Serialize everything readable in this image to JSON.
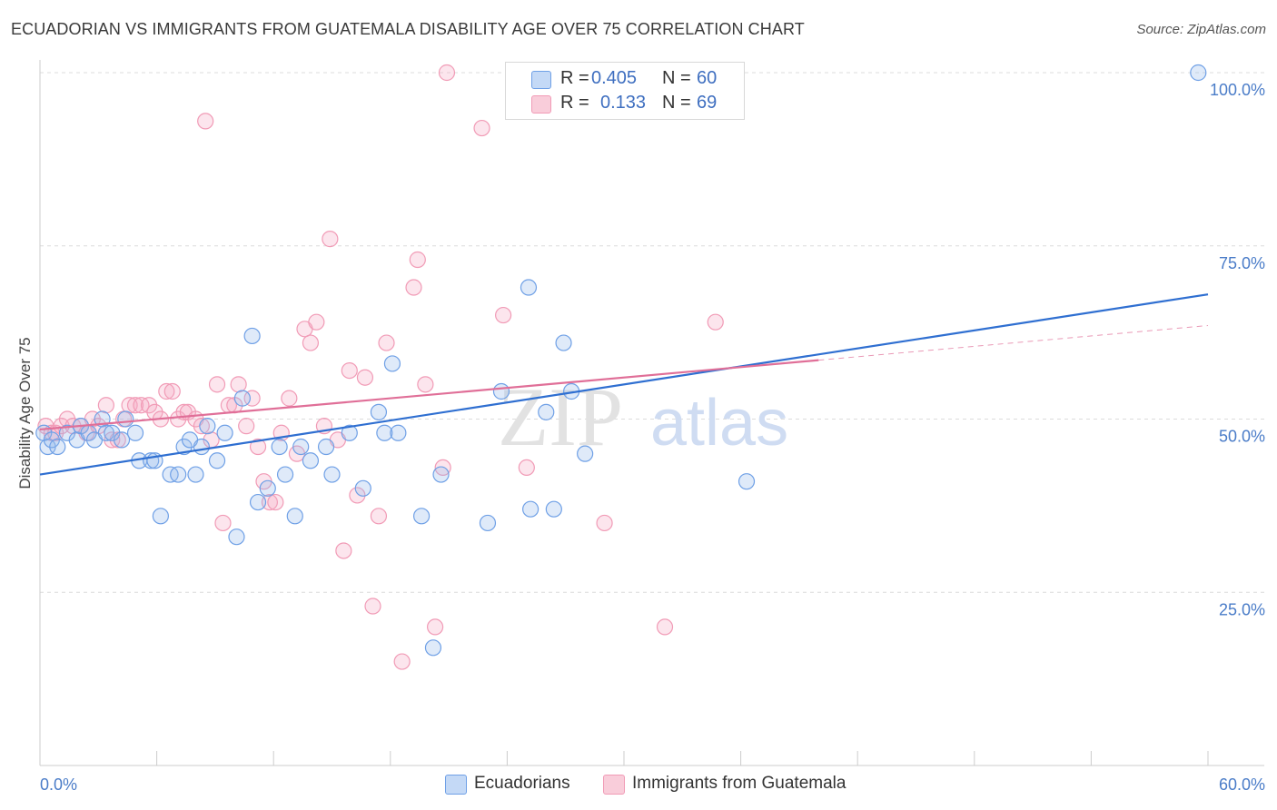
{
  "title": "ECUADORIAN VS IMMIGRANTS FROM GUATEMALA DISABILITY AGE OVER 75 CORRELATION CHART",
  "source": "Source: ZipAtlas.com",
  "watermark": {
    "zip": "ZIP",
    "atlas": "atlas"
  },
  "legend": {
    "rows": [
      {
        "r_label": "R =",
        "r_value": "0.405",
        "n_label": "N =",
        "n_value": "60"
      },
      {
        "r_label": "R =",
        "r_value": "0.133",
        "n_label": "N =",
        "n_value": "69"
      }
    ]
  },
  "bottom_legend": {
    "series1": "Ecuadorians",
    "series2": "Immigrants from Guatemala"
  },
  "chart_data": {
    "type": "scatter",
    "title": "ECUADORIAN VS IMMIGRANTS FROM GUATEMALA DISABILITY AGE OVER 75 CORRELATION CHART",
    "xlabel": "",
    "ylabel": "Disability Age Over 75",
    "xlim": [
      0,
      60
    ],
    "ylim": [
      0,
      104
    ],
    "x_tick_labels": [
      "0.0%",
      "60.0%"
    ],
    "y_ticks": [
      25,
      50,
      75,
      100
    ],
    "y_tick_labels": [
      "25.0%",
      "50.0%",
      "75.0%",
      "100.0%"
    ],
    "grid": true,
    "colors": {
      "ecuadorians": "#6fa0e6",
      "guatemala": "#f19bb6",
      "blue_line": "#2f6fd1",
      "pink_line": "#e06f98"
    },
    "series": [
      {
        "name": "Ecuadorians",
        "R": 0.405,
        "N": 60,
        "trend": {
          "x0": 0,
          "y0": 42,
          "x1": 60,
          "y1": 68
        },
        "points": [
          [
            0.2,
            48
          ],
          [
            0.4,
            46
          ],
          [
            0.6,
            47
          ],
          [
            0.9,
            46
          ],
          [
            1.4,
            48
          ],
          [
            1.9,
            47
          ],
          [
            2.1,
            49
          ],
          [
            2.5,
            48
          ],
          [
            2.8,
            47
          ],
          [
            3.2,
            50
          ],
          [
            3.4,
            48
          ],
          [
            3.7,
            48
          ],
          [
            4.2,
            47
          ],
          [
            4.4,
            50
          ],
          [
            4.9,
            48
          ],
          [
            5.1,
            44
          ],
          [
            5.7,
            44
          ],
          [
            5.9,
            44
          ],
          [
            6.2,
            36
          ],
          [
            6.7,
            42
          ],
          [
            7.1,
            42
          ],
          [
            7.4,
            46
          ],
          [
            7.7,
            47
          ],
          [
            8.0,
            42
          ],
          [
            8.3,
            46
          ],
          [
            8.6,
            49
          ],
          [
            9.1,
            44
          ],
          [
            9.5,
            48
          ],
          [
            10.1,
            33
          ],
          [
            10.4,
            53
          ],
          [
            10.9,
            62
          ],
          [
            11.2,
            38
          ],
          [
            11.7,
            40
          ],
          [
            12.3,
            46
          ],
          [
            12.6,
            42
          ],
          [
            13.1,
            36
          ],
          [
            13.4,
            46
          ],
          [
            13.9,
            44
          ],
          [
            14.7,
            46
          ],
          [
            15.0,
            42
          ],
          [
            15.9,
            48
          ],
          [
            16.6,
            40
          ],
          [
            17.4,
            51
          ],
          [
            17.7,
            48
          ],
          [
            18.1,
            58
          ],
          [
            18.4,
            48
          ],
          [
            19.6,
            36
          ],
          [
            20.2,
            17
          ],
          [
            20.6,
            42
          ],
          [
            23.0,
            35
          ],
          [
            23.7,
            54
          ],
          [
            25.1,
            69
          ],
          [
            25.2,
            37
          ],
          [
            26.0,
            51
          ],
          [
            26.4,
            37
          ],
          [
            26.9,
            61
          ],
          [
            27.3,
            54
          ],
          [
            28.0,
            45
          ],
          [
            36.3,
            41
          ],
          [
            59.5,
            100
          ]
        ]
      },
      {
        "name": "Immigrants from Guatemala",
        "R": 0.133,
        "N": 69,
        "trend": {
          "x0": 0,
          "y0": 48.5,
          "x1": 40,
          "y1": 58.5,
          "dash_to_x": 60,
          "dash_to_y": 63.5
        },
        "points": [
          [
            0.3,
            49
          ],
          [
            0.6,
            48
          ],
          [
            0.8,
            48
          ],
          [
            1.1,
            49
          ],
          [
            1.4,
            50
          ],
          [
            1.7,
            49
          ],
          [
            2.1,
            49
          ],
          [
            2.4,
            48
          ],
          [
            2.7,
            50
          ],
          [
            3.0,
            49
          ],
          [
            3.4,
            52
          ],
          [
            3.7,
            47
          ],
          [
            4.0,
            47
          ],
          [
            4.3,
            50
          ],
          [
            4.6,
            52
          ],
          [
            4.9,
            52
          ],
          [
            5.2,
            52
          ],
          [
            5.6,
            52
          ],
          [
            5.9,
            51
          ],
          [
            6.2,
            50
          ],
          [
            6.5,
            54
          ],
          [
            6.8,
            54
          ],
          [
            7.1,
            50
          ],
          [
            7.4,
            51
          ],
          [
            7.6,
            51
          ],
          [
            8.0,
            50
          ],
          [
            8.3,
            49
          ],
          [
            8.5,
            93
          ],
          [
            8.8,
            47
          ],
          [
            9.1,
            55
          ],
          [
            9.4,
            35
          ],
          [
            9.7,
            52
          ],
          [
            10.0,
            52
          ],
          [
            10.2,
            55
          ],
          [
            10.6,
            49
          ],
          [
            10.9,
            53
          ],
          [
            11.2,
            46
          ],
          [
            11.5,
            41
          ],
          [
            11.8,
            38
          ],
          [
            12.1,
            38
          ],
          [
            12.4,
            48
          ],
          [
            12.8,
            53
          ],
          [
            13.2,
            45
          ],
          [
            13.6,
            63
          ],
          [
            13.9,
            61
          ],
          [
            14.2,
            64
          ],
          [
            14.6,
            49
          ],
          [
            14.9,
            76
          ],
          [
            15.3,
            47
          ],
          [
            15.6,
            31
          ],
          [
            15.9,
            57
          ],
          [
            16.3,
            39
          ],
          [
            16.7,
            56
          ],
          [
            17.1,
            23
          ],
          [
            17.4,
            36
          ],
          [
            17.8,
            61
          ],
          [
            18.6,
            15
          ],
          [
            19.2,
            69
          ],
          [
            19.4,
            73
          ],
          [
            19.8,
            55
          ],
          [
            20.3,
            20
          ],
          [
            20.7,
            43
          ],
          [
            20.9,
            100
          ],
          [
            22.7,
            92
          ],
          [
            23.8,
            65
          ],
          [
            25.0,
            43
          ],
          [
            29.0,
            35
          ],
          [
            32.1,
            20
          ],
          [
            34.7,
            64
          ]
        ]
      }
    ]
  }
}
